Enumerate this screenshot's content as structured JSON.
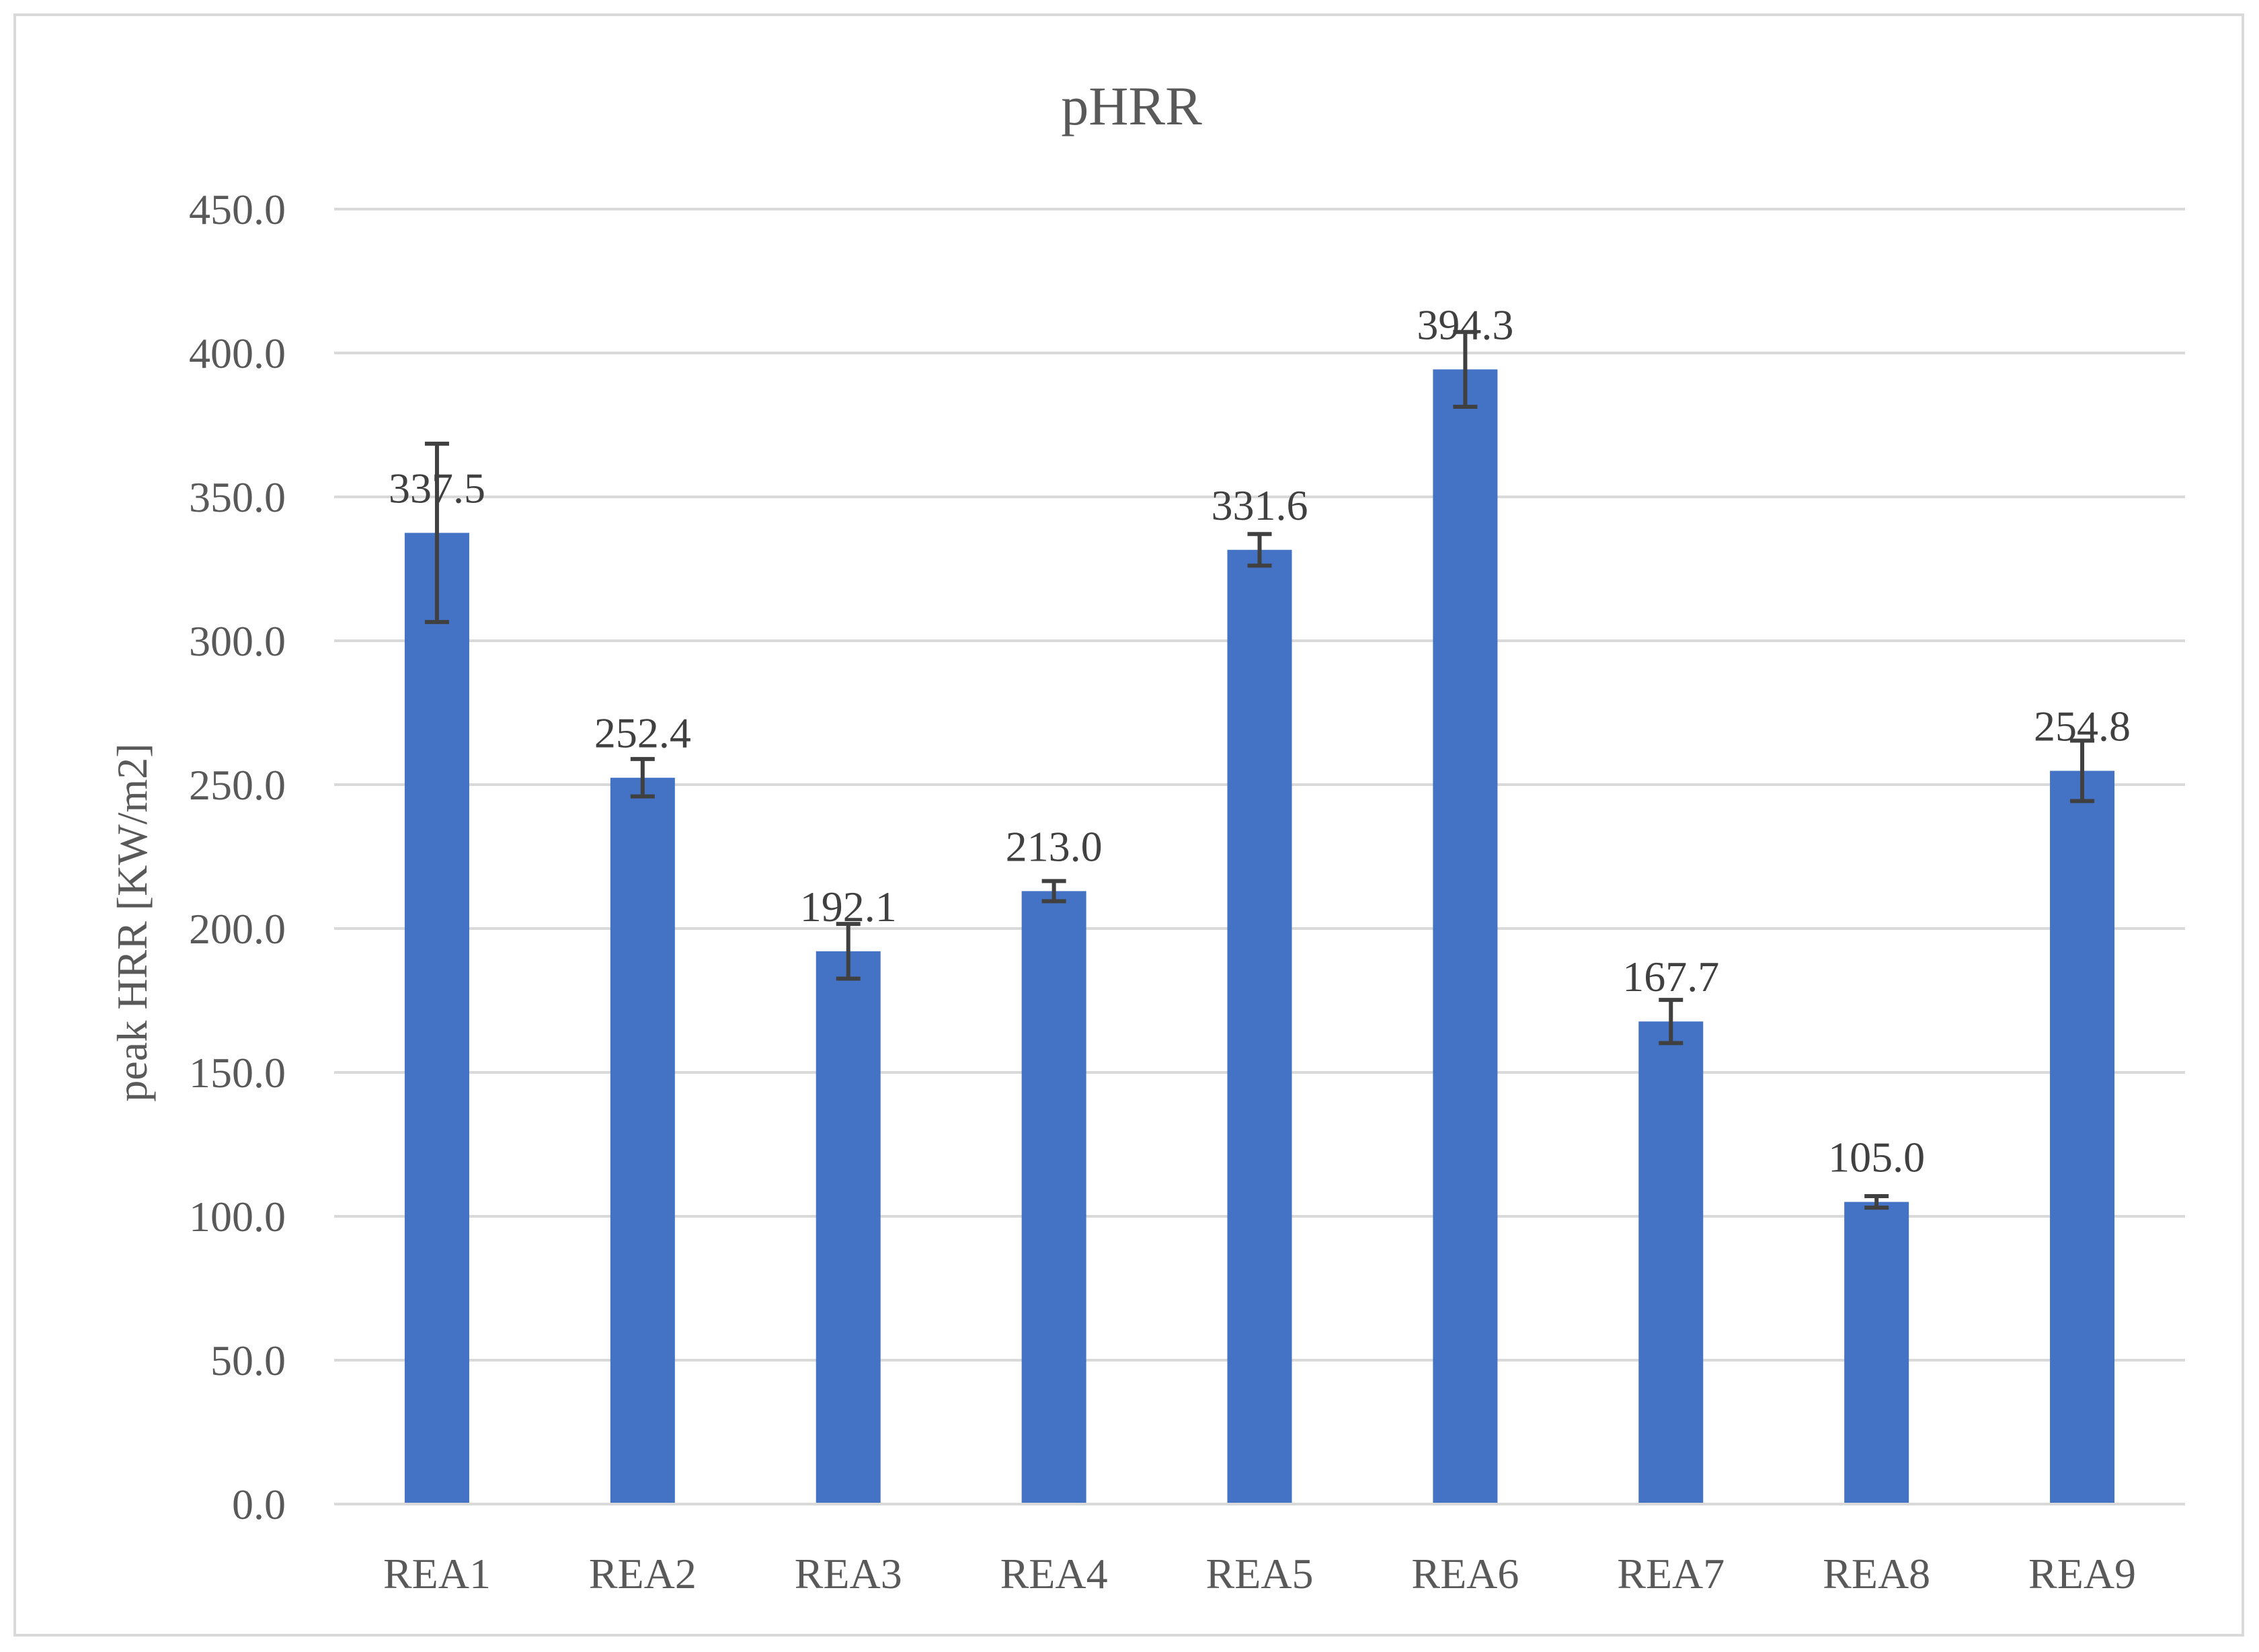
{
  "chart_data": {
    "type": "bar",
    "title": "pHRR",
    "xlabel": "",
    "ylabel": "peak HRR [KW/m2]",
    "categories": [
      "REA1",
      "REA2",
      "REA3",
      "REA4",
      "REA5",
      "REA6",
      "REA7",
      "REA8",
      "REA9"
    ],
    "series": [
      {
        "values": [
          337.5,
          252.4,
          192.1,
          213.0,
          331.6,
          394.3,
          167.7,
          105.0,
          254.8
        ],
        "labels": [
          "337.5",
          "252.4",
          "192.1",
          "213.0",
          "331.6",
          "394.3",
          "167.7",
          "105.0",
          "254.8"
        ],
        "error": [
          31.0,
          6.5,
          9.5,
          3.5,
          5.5,
          13.0,
          7.5,
          2.0,
          10.5
        ],
        "color": "#4472c4"
      }
    ],
    "ylim": [
      0,
      450
    ],
    "yticks": [
      "0.0",
      "50.0",
      "100.0",
      "150.0",
      "200.0",
      "250.0",
      "300.0",
      "350.0",
      "400.0",
      "450.0"
    ],
    "grid": true,
    "legend": "none",
    "colors": {
      "bar": "#4472c4",
      "error_bar": "#404040",
      "grid": "#d9d9d9",
      "text": "#595959"
    }
  }
}
